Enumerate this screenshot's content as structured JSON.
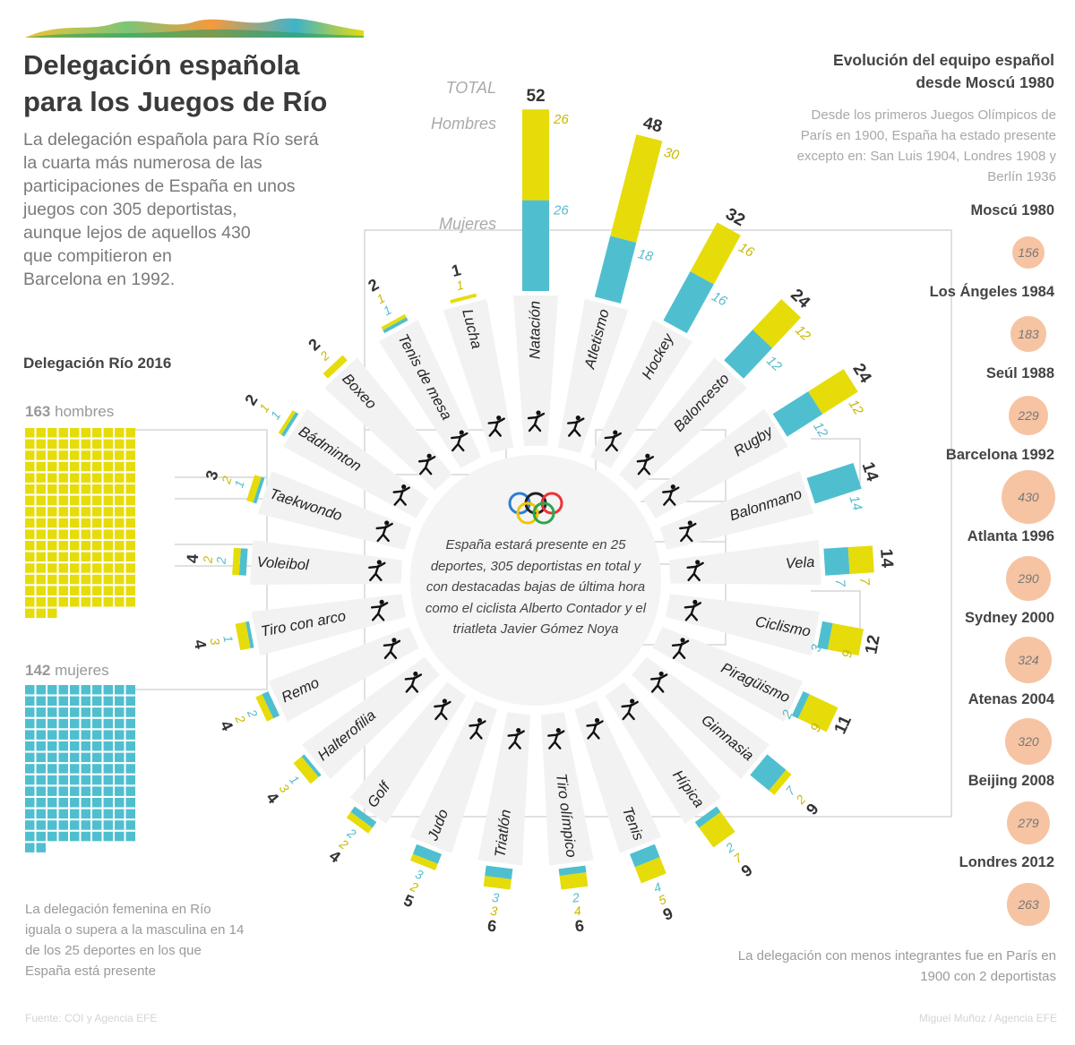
{
  "header": {
    "title_line1": "Delegación española",
    "title_line2": "para los Juegos de Río",
    "intro_lines": [
      "La delegación española para Río será",
      "la cuarta más numerosa de las",
      "participaciones de España en unos",
      "juegos con 305 deportistas,",
      "aunque lejos de aquellos 430",
      "que compitieron en",
      "Barcelona en 1992."
    ]
  },
  "legend": {
    "total": "TOTAL",
    "men": "Hombres",
    "women": "Mujeres"
  },
  "center_text": "España estará presente en 25 deportes, 305 deportistas en total y con destacadas bajas de última hora como el ciclista Alberto Contador y el triatleta Javier Gómez Noya",
  "waffle": {
    "title": "Delegación Río 2016",
    "men_count": "163",
    "men_label": "hombres",
    "women_count": "142",
    "women_label": "mujeres",
    "note": "La delegación femenina en Río iguala o supera a la masculina en 14 de los 25 deportes en los que España está presente"
  },
  "history": {
    "title_line1": "Evolución del equipo español",
    "title_line2": "desde Moscú 1980",
    "intro": "Desde los primeros Juegos Olímpicos de París en 1900, España ha estado presente excepto en: San Luis 1904, Londres 1908 y Berlín 1936",
    "items": [
      {
        "label": "Moscú 1980",
        "value": "156"
      },
      {
        "label": "Los Ángeles 1984",
        "value": "183"
      },
      {
        "label": "Seúl 1988",
        "value": "229"
      },
      {
        "label": "Barcelona 1992",
        "value": "430"
      },
      {
        "label": "Atlanta 1996",
        "value": "290"
      },
      {
        "label": "Sydney 2000",
        "value": "324"
      },
      {
        "label": "Atenas 2004",
        "value": "320"
      },
      {
        "label": "Beijing 2008",
        "value": "279"
      },
      {
        "label": "Londres 2012",
        "value": "263"
      }
    ],
    "note": "La delegación con menos integrantes fue en París en 1900 con 2 deportistas"
  },
  "footer": {
    "source": "Fuente: COI y Agencia EFE",
    "credit": "Miguel Muñoz / Agencia EFE"
  },
  "colors": {
    "men": "#e6dc0a",
    "women": "#4fbfcf",
    "history": "#f6c4a3",
    "men_text": "#c9b800",
    "women_text": "#58bccc"
  },
  "chart_data": {
    "type": "bar",
    "layout": "radial stacked",
    "categories": [
      "Natación",
      "Atletismo",
      "Hockey",
      "Baloncesto",
      "Rugby",
      "Balonmano",
      "Vela",
      "Ciclismo",
      "Piragüismo",
      "Gimnasia",
      "Hípica",
      "Tenis",
      "Tiro olímpico",
      "Triatlón",
      "Judo",
      "Golf",
      "Halterofilia",
      "Remo",
      "Tiro con arco",
      "Voleibol",
      "Taekwondo",
      "Bádminton",
      "Boxeo",
      "Tenis de mesa",
      "Lucha"
    ],
    "totals": [
      52,
      48,
      32,
      24,
      24,
      14,
      14,
      12,
      11,
      9,
      9,
      9,
      6,
      6,
      5,
      4,
      4,
      4,
      4,
      4,
      3,
      2,
      2,
      2,
      1
    ],
    "series": [
      {
        "name": "Hombres",
        "values": [
          26,
          30,
          16,
          12,
          12,
          0,
          7,
          9,
          9,
          2,
          7,
          5,
          4,
          3,
          2,
          2,
          3,
          2,
          3,
          2,
          2,
          1,
          2,
          1,
          1
        ]
      },
      {
        "name": "Mujeres",
        "values": [
          26,
          18,
          16,
          12,
          12,
          14,
          7,
          3,
          2,
          7,
          2,
          4,
          2,
          3,
          3,
          2,
          1,
          2,
          1,
          2,
          1,
          1,
          0,
          1,
          0
        ]
      }
    ]
  }
}
